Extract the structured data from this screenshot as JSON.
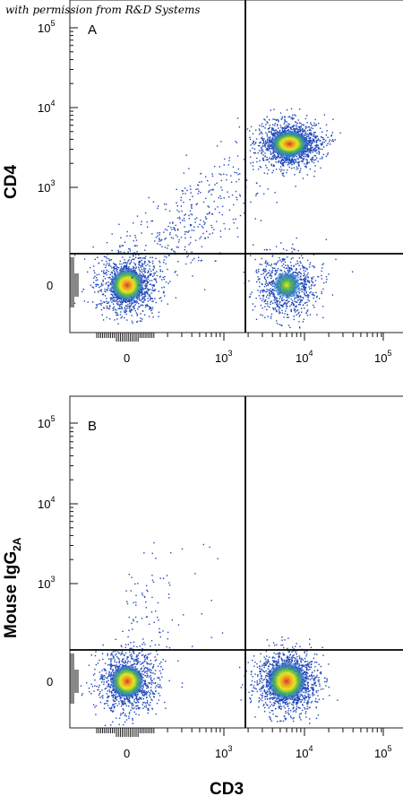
{
  "credit": "with permission from R&D Systems",
  "x_axis_label": "CD3",
  "chart_data": [
    {
      "type": "scatter",
      "panel_label": "A",
      "ylabel": "CD4",
      "xlabel": "CD3",
      "scale": "biexponential (log)",
      "x_ticks": [
        "0",
        "10^3",
        "10^4",
        "10^5"
      ],
      "y_ticks": [
        "0",
        "10^3",
        "10^4",
        "10^5"
      ],
      "quadrant_gate": {
        "x": 2000,
        "y": 200
      },
      "populations": [
        {
          "name": "CD3- CD4-",
          "x": 0,
          "y": 0,
          "density": "high"
        },
        {
          "name": "CD3+ CD4+",
          "x": 6500,
          "y": 3500,
          "density": "highest"
        },
        {
          "name": "CD3+ CD4-",
          "x": 6000,
          "y": 0,
          "density": "medium"
        },
        {
          "name": "scattered",
          "x": 300,
          "y": 300,
          "density": "low"
        }
      ],
      "grid": false
    },
    {
      "type": "scatter",
      "panel_label": "B",
      "ylabel": "Mouse IgG",
      "ylabel_sub": "2A",
      "xlabel": "CD3",
      "scale": "biexponential (log)",
      "x_ticks": [
        "0",
        "10^3",
        "10^4",
        "10^5"
      ],
      "y_ticks": [
        "0",
        "10^3",
        "10^4",
        "10^5"
      ],
      "quadrant_gate": {
        "x": 2000,
        "y": 200
      },
      "populations": [
        {
          "name": "CD3- isotype",
          "x": 0,
          "y": 0,
          "density": "high"
        },
        {
          "name": "CD3+ isotype",
          "x": 6000,
          "y": 0,
          "density": "highest"
        },
        {
          "name": "scattered",
          "x": 200,
          "y": 500,
          "density": "low"
        }
      ],
      "grid": false
    }
  ]
}
